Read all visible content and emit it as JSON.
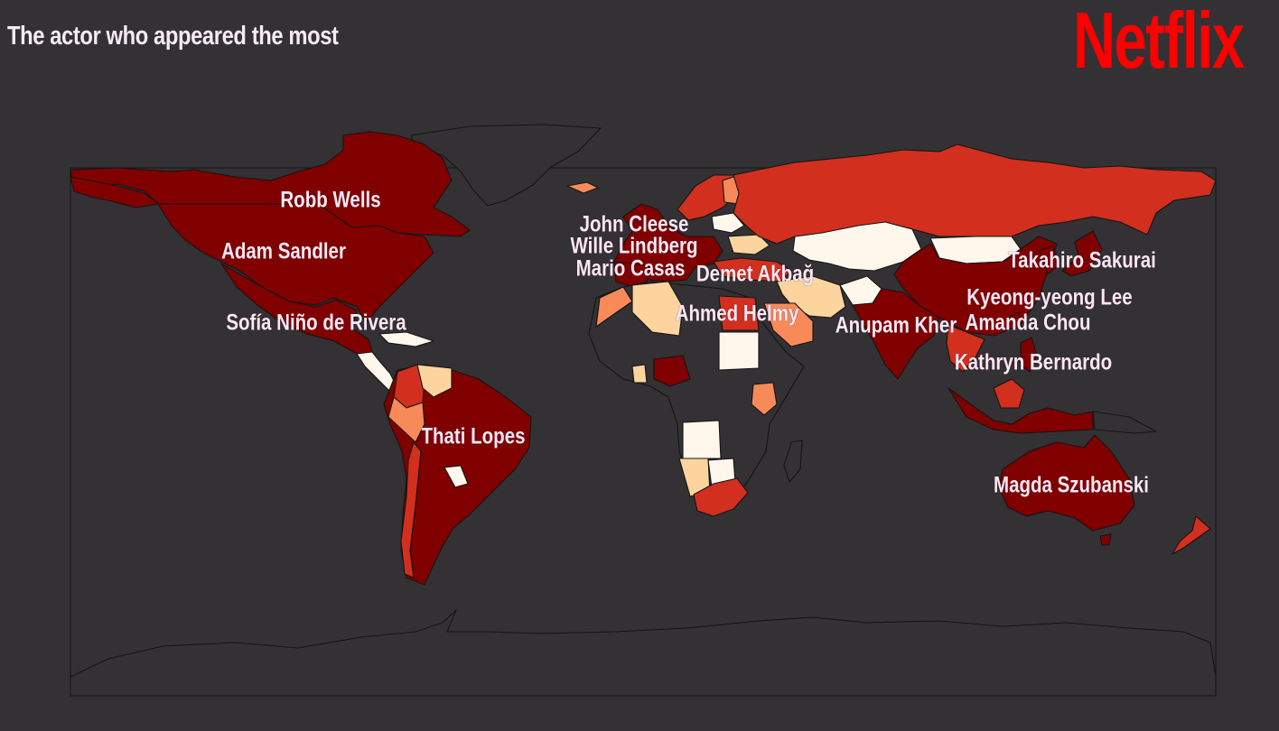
{
  "header": {
    "title": "The actor who appeared the most"
  },
  "logo": {
    "text": "Netflix",
    "color": "#ff0000"
  },
  "legend_colors": {
    "highest": "#800000",
    "high": "#d22f1e",
    "medium": "#f88a5a",
    "low": "#fdd49e",
    "lowest": "#fff7ec",
    "no_data": "#333134"
  },
  "map_labels": [
    {
      "country": "Canada",
      "actor": "Robb Wells"
    },
    {
      "country": "United States",
      "actor": "Adam Sandler"
    },
    {
      "country": "Mexico",
      "actor": "Sofía Niño de Rivera"
    },
    {
      "country": "Brazil",
      "actor": "Thati Lopes"
    },
    {
      "country": "United Kingdom",
      "actor": "John Cleese"
    },
    {
      "country": "Sweden",
      "actor": "Wille Lindberg"
    },
    {
      "country": "Spain",
      "actor": "Mario Casas"
    },
    {
      "country": "Turkey",
      "actor": "Demet Akbağ"
    },
    {
      "country": "Egypt",
      "actor": "Ahmed Helmy"
    },
    {
      "country": "India",
      "actor": "Anupam Kher"
    },
    {
      "country": "Japan",
      "actor": "Takahiro Sakurai"
    },
    {
      "country": "South Korea",
      "actor": "Kyeong-yeong Lee"
    },
    {
      "country": "Taiwan",
      "actor": "Amanda Chou"
    },
    {
      "country": "Philippines",
      "actor": "Kathryn Bernardo"
    },
    {
      "country": "Australia",
      "actor": "Magda Szubanski"
    }
  ]
}
